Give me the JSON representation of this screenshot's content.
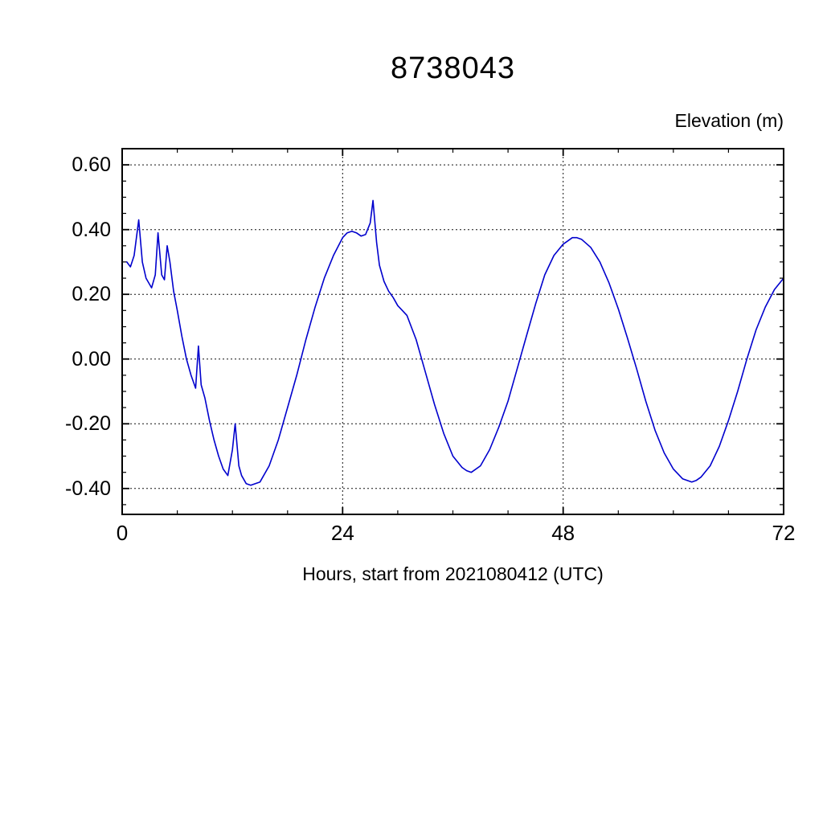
{
  "chart_data": {
    "type": "line",
    "title": "8738043",
    "ylabel": "Elevation (m)",
    "xlabel": "Hours, start from 2021080412 (UTC)",
    "xlim": [
      0,
      72
    ],
    "ylim": [
      -0.48,
      0.65
    ],
    "xticks": [
      0,
      24,
      48,
      72
    ],
    "xtick_labels": [
      "0",
      "24",
      "48",
      "72"
    ],
    "x_minor_step": 6,
    "yticks": [
      0.6,
      0.4,
      0.2,
      0.0,
      -0.2,
      -0.4
    ],
    "ytick_labels": [
      "0.60",
      "0.40",
      "0.20",
      "0.00",
      "-0.20",
      "-0.40"
    ],
    "y_minor_step": 0.05,
    "grid": true,
    "x_gridlines": [
      24,
      48
    ],
    "legend": "none",
    "line_color": "#0000cd",
    "axis_color": "#000000",
    "grid_color": "#111111",
    "background_color": "#ffffff",
    "series": [
      {
        "name": "elevation",
        "x": [
          0.5,
          0.9,
          1.3,
          1.8,
          2.2,
          2.6,
          3.2,
          3.6,
          3.9,
          4.3,
          4.6,
          4.9,
          5.2,
          5.6,
          6,
          6.5,
          7,
          7.5,
          8,
          8.3,
          8.6,
          9,
          9.5,
          10,
          10.5,
          11,
          11.5,
          12,
          12.3,
          12.7,
          13,
          13.5,
          14,
          14.5,
          15,
          16,
          17,
          18,
          19,
          20,
          21,
          22,
          23,
          24,
          24.5,
          25,
          25.5,
          26,
          26.5,
          27,
          27.3,
          27.7,
          28,
          28.5,
          29,
          29.5,
          30,
          30.5,
          31,
          32,
          33,
          34,
          35,
          36,
          37,
          37.5,
          38,
          39,
          40,
          41,
          42,
          43,
          44,
          45,
          46,
          47,
          48,
          48.5,
          49,
          49.5,
          50,
          51,
          52,
          53,
          54,
          55,
          56,
          57,
          58,
          59,
          60,
          61,
          61.5,
          62,
          62.5,
          63,
          64,
          65,
          66,
          67,
          68,
          69,
          70,
          71,
          72
        ],
        "y": [
          0.3,
          0.285,
          0.32,
          0.43,
          0.3,
          0.25,
          0.22,
          0.26,
          0.39,
          0.26,
          0.245,
          0.35,
          0.3,
          0.21,
          0.15,
          0.07,
          0.0,
          -0.05,
          -0.09,
          0.04,
          -0.08,
          -0.12,
          -0.19,
          -0.25,
          -0.3,
          -0.34,
          -0.36,
          -0.28,
          -0.2,
          -0.33,
          -0.36,
          -0.385,
          -0.39,
          -0.385,
          -0.38,
          -0.33,
          -0.25,
          -0.15,
          -0.05,
          0.06,
          0.16,
          0.25,
          0.32,
          0.375,
          0.39,
          0.395,
          0.39,
          0.38,
          0.385,
          0.42,
          0.49,
          0.36,
          0.29,
          0.24,
          0.21,
          0.19,
          0.165,
          0.15,
          0.135,
          0.06,
          -0.04,
          -0.14,
          -0.23,
          -0.3,
          -0.335,
          -0.345,
          -0.35,
          -0.33,
          -0.28,
          -0.21,
          -0.13,
          -0.03,
          0.07,
          0.17,
          0.26,
          0.32,
          0.355,
          0.365,
          0.375,
          0.375,
          0.37,
          0.345,
          0.3,
          0.235,
          0.155,
          0.065,
          -0.03,
          -0.13,
          -0.22,
          -0.29,
          -0.34,
          -0.37,
          -0.375,
          -0.38,
          -0.375,
          -0.365,
          -0.33,
          -0.27,
          -0.19,
          -0.1,
          0.0,
          0.09,
          0.16,
          0.215,
          0.25
        ]
      }
    ]
  }
}
